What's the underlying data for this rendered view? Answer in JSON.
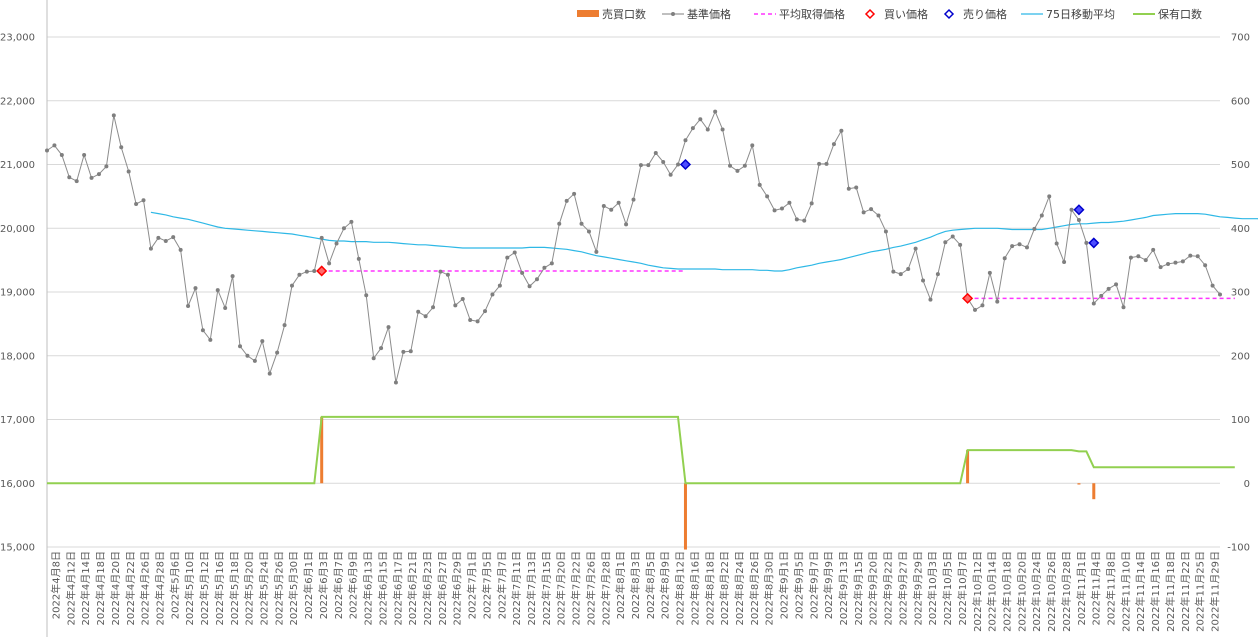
{
  "chart_data": {
    "type": "line",
    "y_left": {
      "min": 15000,
      "max": 23000,
      "step": 1000,
      "tick_labels": [
        "15,000",
        "16,000",
        "17,000",
        "18,000",
        "19,000",
        "20,000",
        "21,000",
        "22,000",
        "23,000"
      ]
    },
    "y_right": {
      "min": -100,
      "max": 700,
      "step": 100,
      "tick_labels": [
        "-100",
        "0",
        "100",
        "200",
        "300",
        "400",
        "500",
        "600",
        "700"
      ]
    },
    "grid": true,
    "legend_position": "top-right",
    "legend": [
      {
        "key": "trade",
        "label": "売買口数",
        "color": "#ed7d31",
        "kind": "bar"
      },
      {
        "key": "price",
        "label": "基準価格",
        "color": "#7f7f7f",
        "kind": "line-marker"
      },
      {
        "key": "avg",
        "label": "平均取得価格",
        "color": "#ff33ff",
        "kind": "dash"
      },
      {
        "key": "buy",
        "label": "買い価格",
        "color": "#ff0000",
        "kind": "diamond"
      },
      {
        "key": "sell",
        "label": "売り価格",
        "color": "#0000cc",
        "kind": "diamond"
      },
      {
        "key": "ma75",
        "label": "75日移動平均",
        "color": "#2eb8e6",
        "kind": "line"
      },
      {
        "key": "hold",
        "label": "保有口数",
        "color": "#92d050",
        "kind": "line"
      }
    ],
    "x_labels": [
      "2022年4月8日",
      "2022年4月12日",
      "2022年4月14日",
      "2022年4月18日",
      "2022年4月20日",
      "2022年4月22日",
      "2022年4月26日",
      "2022年4月28日",
      "2022年5月6日",
      "2022年5月10日",
      "2022年5月12日",
      "2022年5月16日",
      "2022年5月18日",
      "2022年5月20日",
      "2022年5月24日",
      "2022年5月26日",
      "2022年5月30日",
      "2022年6月1日",
      "2022年6月3日",
      "2022年6月7日",
      "2022年6月9日",
      "2022年6月13日",
      "2022年6月15日",
      "2022年6月17日",
      "2022年6月21日",
      "2022年6月23日",
      "2022年6月27日",
      "2022年6月29日",
      "2022年7月1日",
      "2022年7月5日",
      "2022年7月7日",
      "2022年7月11日",
      "2022年7月13日",
      "2022年7月15日",
      "2022年7月20日",
      "2022年7月22日",
      "2022年7月26日",
      "2022年7月28日",
      "2022年8月1日",
      "2022年8月3日",
      "2022年8月5日",
      "2022年8月9日",
      "2022年8月12日",
      "2022年8月16日",
      "2022年8月18日",
      "2022年8月22日",
      "2022年8月24日",
      "2022年8月26日",
      "2022年8月30日",
      "2022年9月1日",
      "2022年9月5日",
      "2022年9月7日",
      "2022年9月9日",
      "2022年9月13日",
      "2022年9月15日",
      "2022年9月20日",
      "2022年9月22日",
      "2022年9月27日",
      "2022年9月29日",
      "2022年10月3日",
      "2022年10月5日",
      "2022年10月7日",
      "2022年10月12日",
      "2022年10月14日",
      "2022年10月18日",
      "2022年10月20日",
      "2022年10月24日",
      "2022年10月26日",
      "2022年10月28日",
      "2022年11月1日",
      "2022年11月4日",
      "2022年11月8日",
      "2022年11月10日",
      "2022年11月14日",
      "2022年11月16日",
      "2022年11月18日",
      "2022年11月22日",
      "2022年11月25日",
      "2022年11月29日"
    ],
    "price": [
      21220,
      21300,
      21150,
      20800,
      20740,
      21150,
      20790,
      20850,
      20970,
      21770,
      21270,
      20890,
      20380,
      20440,
      19680,
      19850,
      19800,
      19860,
      19660,
      18780,
      19060,
      18400,
      18250,
      19030,
      18750,
      19250,
      18150,
      18000,
      17920,
      18230,
      17720,
      18050,
      18480,
      19100,
      19270,
      19320,
      19330,
      19850,
      19450,
      19760,
      20000,
      20100,
      19520,
      18950,
      17960,
      18120,
      18450,
      17580,
      18060,
      18070,
      18690,
      18620,
      18760,
      19320,
      19270,
      18790,
      18890,
      18560,
      18540,
      18700,
      18960,
      19100,
      19540,
      19620,
      19300,
      19090,
      19200,
      19380,
      19450,
      20070,
      20430,
      20540,
      20070,
      19950,
      19630,
      20350,
      20290,
      20400,
      20060,
      20450,
      20990,
      20990,
      21180,
      21040,
      20840,
      21000,
      21380,
      21570,
      21710,
      21550,
      21830,
      21550,
      20980,
      20900,
      20980,
      21300,
      20680,
      20500,
      20280,
      20310,
      20400,
      20140,
      20120,
      20390,
      21010,
      21010,
      21320,
      21530,
      20620,
      20640,
      20250,
      20300,
      20200,
      19950,
      19320,
      19280,
      19360,
      19680,
      19180,
      18880,
      19280,
      19780,
      19870,
      19740,
      18900,
      18720,
      18790,
      19300,
      18850,
      19530,
      19720,
      19750,
      19700,
      19990,
      20200,
      20500,
      19760,
      19470,
      20290,
      20130,
      19770,
      18820,
      18940,
      19050,
      19120,
      18760,
      19540,
      19560,
      19500,
      19660,
      19390,
      19440,
      19460,
      19480,
      19570,
      19560,
      19420,
      19100,
      18960
    ],
    "ma75_start_index": 14,
    "ma75": [
      20250,
      20230,
      20210,
      20180,
      20160,
      20140,
      20110,
      20080,
      20050,
      20020,
      20000,
      19990,
      19980,
      19970,
      19960,
      19950,
      19940,
      19930,
      19920,
      19910,
      19890,
      19870,
      19850,
      19830,
      19810,
      19800,
      19800,
      19790,
      19790,
      19790,
      19780,
      19780,
      19780,
      19770,
      19760,
      19750,
      19740,
      19740,
      19730,
      19720,
      19710,
      19700,
      19690,
      19690,
      19690,
      19690,
      19690,
      19690,
      19690,
      19690,
      19690,
      19700,
      19700,
      19700,
      19690,
      19680,
      19670,
      19650,
      19630,
      19600,
      19570,
      19550,
      19530,
      19510,
      19490,
      19470,
      19450,
      19420,
      19400,
      19380,
      19370,
      19360,
      19360,
      19360,
      19360,
      19360,
      19360,
      19350,
      19350,
      19350,
      19350,
      19350,
      19340,
      19340,
      19330,
      19330,
      19350,
      19380,
      19400,
      19420,
      19450,
      19470,
      19490,
      19510,
      19540,
      19570,
      19600,
      19630,
      19650,
      19670,
      19700,
      19720,
      19750,
      19780,
      19820,
      19860,
      19910,
      19950,
      19970,
      19980,
      19990,
      20000,
      20000,
      20000,
      20000,
      19990,
      19980,
      19980,
      19980,
      19980,
      19980,
      20000,
      20020,
      20040,
      20060,
      20070,
      20070,
      20080,
      20090,
      20090,
      20100,
      20110,
      20130,
      20150,
      20170,
      20200,
      20210,
      20220,
      20230,
      20230,
      20230,
      20230,
      20220,
      20200,
      20180,
      20170,
      20160,
      20150,
      20150,
      20150,
      20140,
      20130,
      20110,
      20100,
      20080,
      20050,
      20030
    ],
    "avg_segments": [
      {
        "from": 37,
        "to": 86,
        "value": 19330
      },
      {
        "from": 124,
        "to": 160,
        "value": 18900
      }
    ],
    "buy_points": [
      {
        "index": 37,
        "value": 19330
      },
      {
        "index": 124,
        "value": 18900
      }
    ],
    "sell_points": [
      {
        "index": 86,
        "value": 21000
      },
      {
        "index": 139,
        "value": 20290
      },
      {
        "index": 141,
        "value": 19770
      }
    ],
    "trade_bars": [
      {
        "index": 37,
        "value": 104
      },
      {
        "index": 86,
        "value": -104
      },
      {
        "index": 124,
        "value": 52
      },
      {
        "index": 139,
        "value": -2
      },
      {
        "index": 141,
        "value": -25
      }
    ],
    "holdings": [
      {
        "index": 0,
        "value": 0
      },
      {
        "index": 36,
        "value": 0
      },
      {
        "index": 37,
        "value": 104
      },
      {
        "index": 85,
        "value": 104
      },
      {
        "index": 86,
        "value": 0
      },
      {
        "index": 123,
        "value": 0
      },
      {
        "index": 124,
        "value": 52
      },
      {
        "index": 138,
        "value": 52
      },
      {
        "index": 139,
        "value": 50
      },
      {
        "index": 140,
        "value": 50
      },
      {
        "index": 141,
        "value": 25
      },
      {
        "index": 160,
        "value": 25
      }
    ]
  }
}
